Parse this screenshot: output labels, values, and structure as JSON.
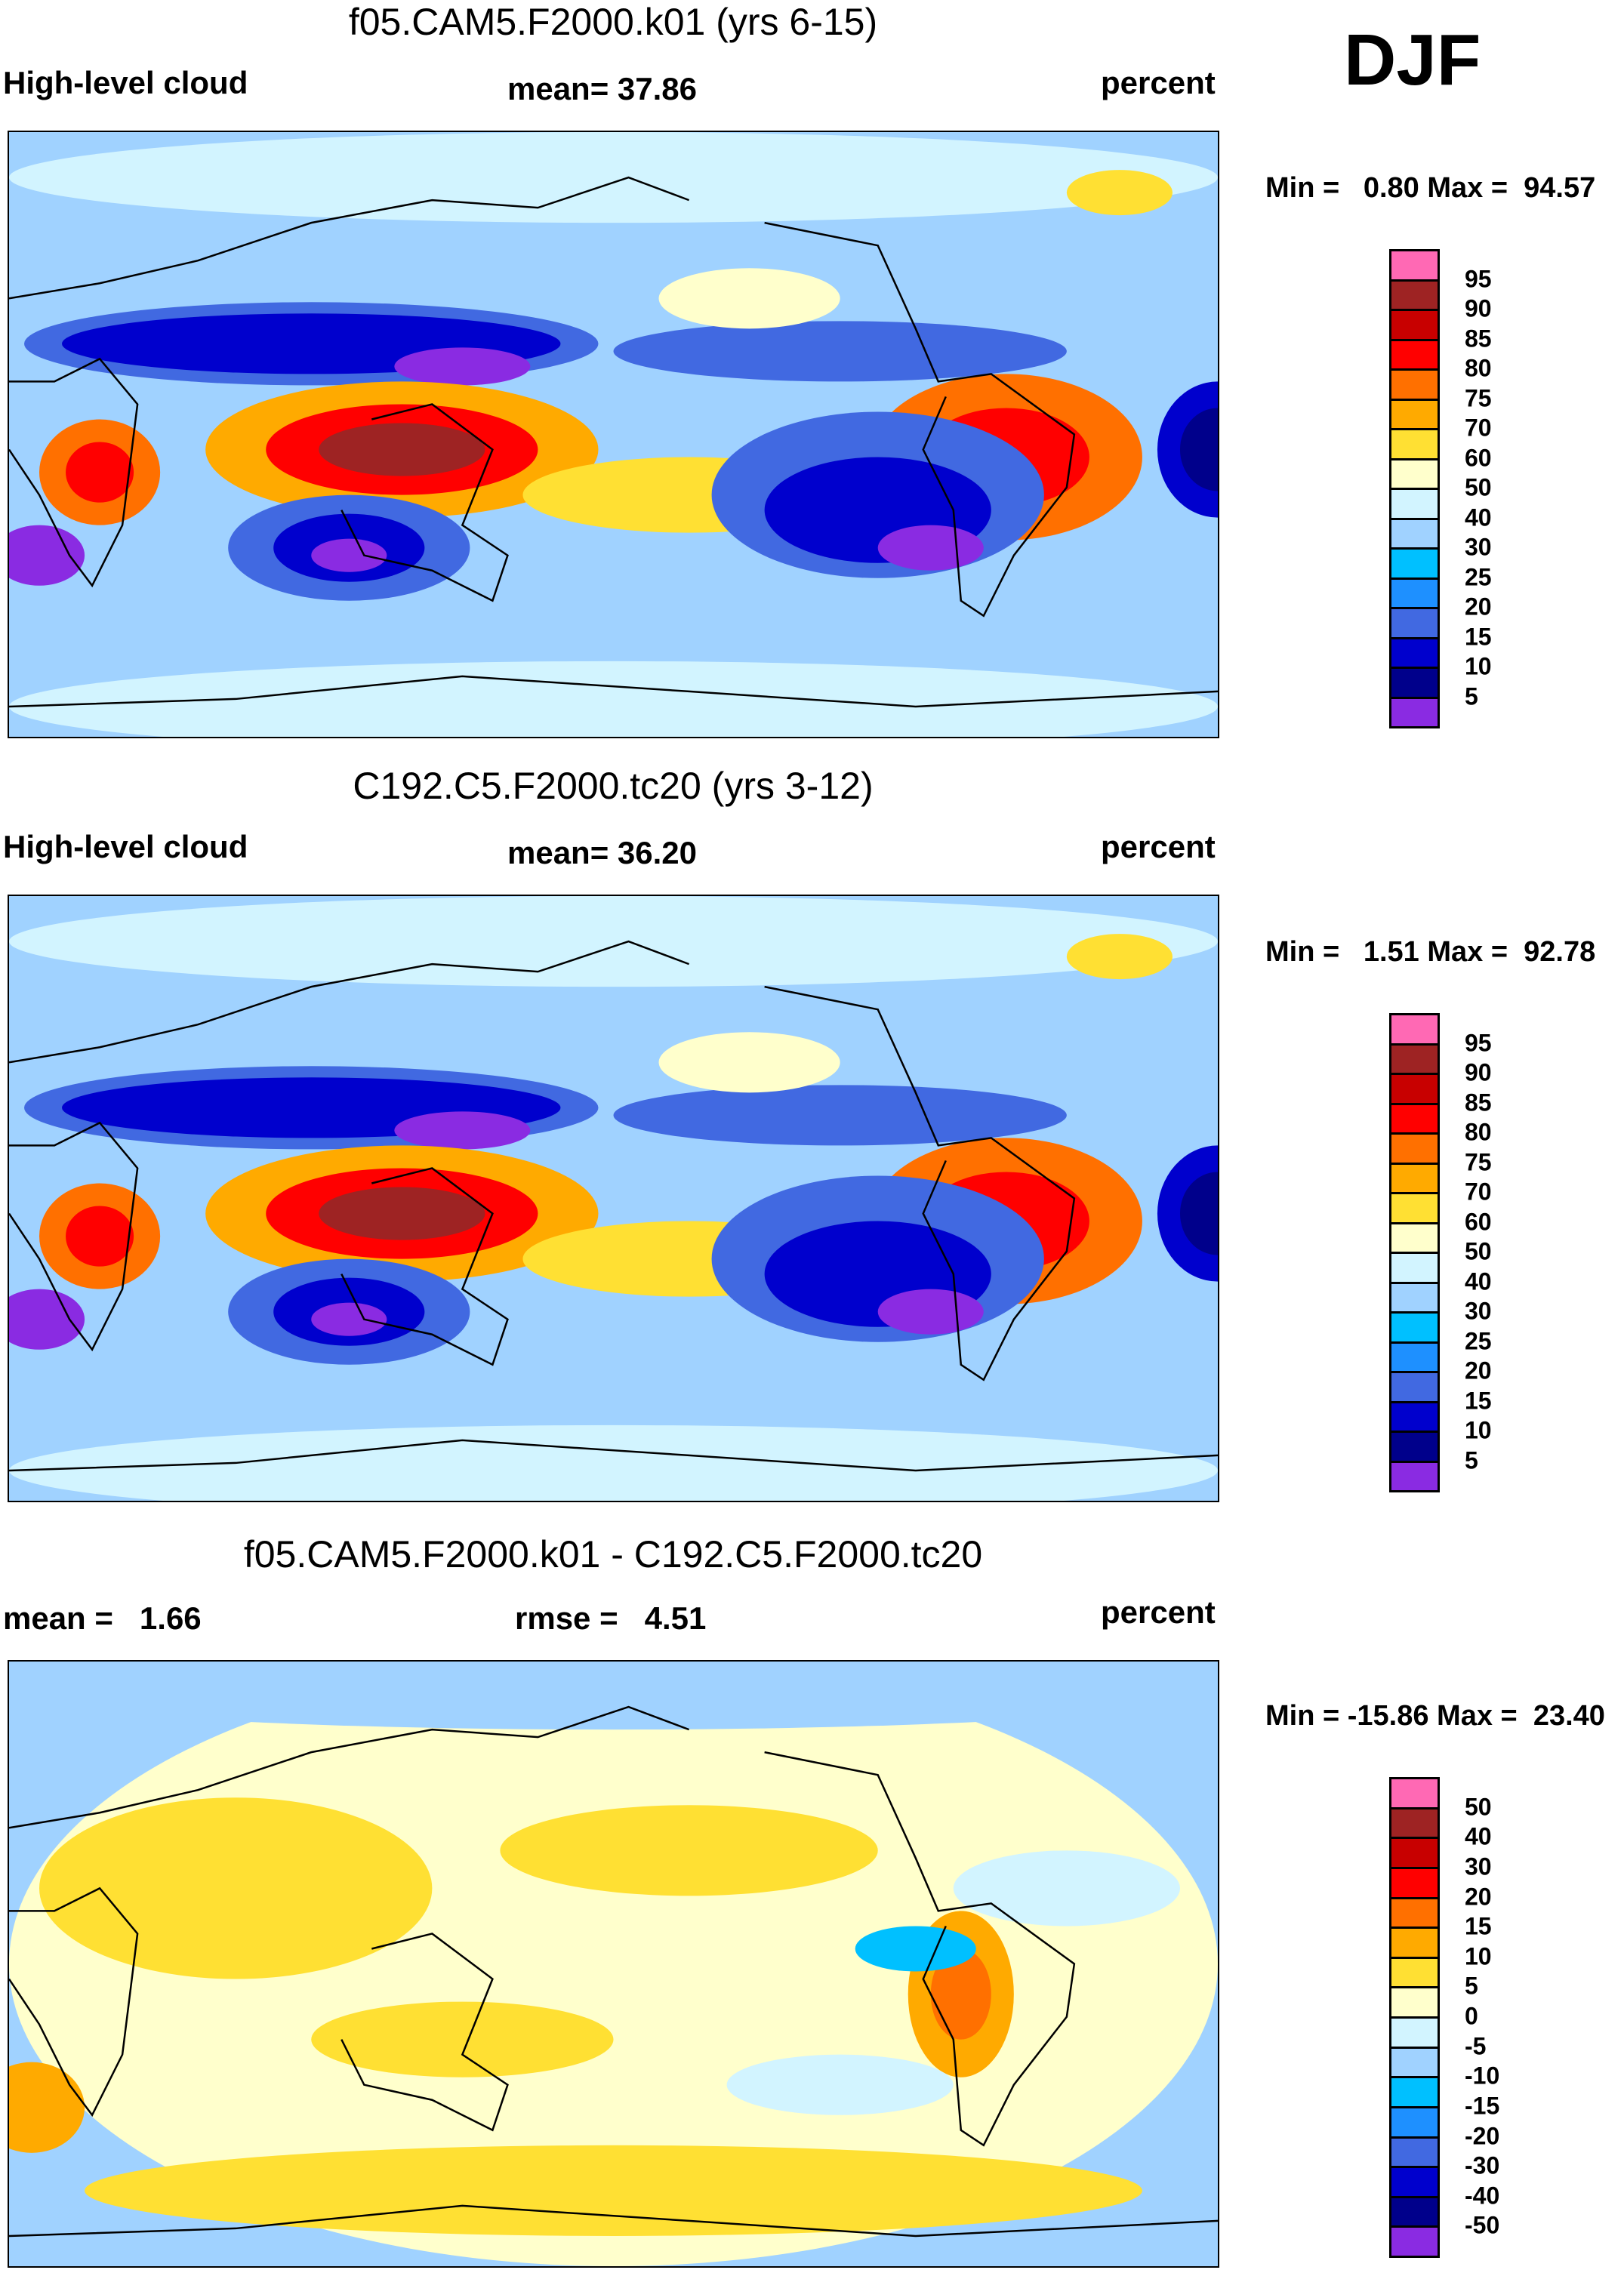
{
  "season": "DJF",
  "chart_data": [
    {
      "type": "heatmap",
      "title": "f05.CAM5.F2000.k01 (yrs 6-15)",
      "variable": "High-level cloud",
      "units": "percent",
      "stat_left": "mean=  37.86",
      "stat_mid": "",
      "minmax": "Min =   0.80 Max =  94.57",
      "min": 0.8,
      "max": 94.57,
      "mean": 37.86,
      "levels": [
        "95",
        "90",
        "85",
        "80",
        "75",
        "70",
        "60",
        "50",
        "40",
        "30",
        "25",
        "20",
        "15",
        "10",
        "5"
      ],
      "colors": [
        "#ff69b4",
        "#9e2323",
        "#c80000",
        "#ff0000",
        "#ff7000",
        "#ffaa00",
        "#ffe033",
        "#ffffcc",
        "#d2f4ff",
        "#a0d2ff",
        "#00c0ff",
        "#1e90ff",
        "#4169e1",
        "#0000cd",
        "#00008b",
        "#8a2be2"
      ]
    },
    {
      "type": "heatmap",
      "title": "C192.C5.F2000.tc20 (yrs 3-12)",
      "variable": "High-level cloud",
      "units": "percent",
      "stat_left": "mean=  36.20",
      "stat_mid": "",
      "minmax": "Min =   1.51 Max =  92.78",
      "min": 1.51,
      "max": 92.78,
      "mean": 36.2,
      "levels": [
        "95",
        "90",
        "85",
        "80",
        "75",
        "70",
        "60",
        "50",
        "40",
        "30",
        "25",
        "20",
        "15",
        "10",
        "5"
      ],
      "colors": [
        "#ff69b4",
        "#9e2323",
        "#c80000",
        "#ff0000",
        "#ff7000",
        "#ffaa00",
        "#ffe033",
        "#ffffcc",
        "#d2f4ff",
        "#a0d2ff",
        "#00c0ff",
        "#1e90ff",
        "#4169e1",
        "#0000cd",
        "#00008b",
        "#8a2be2"
      ]
    },
    {
      "type": "heatmap",
      "title": "f05.CAM5.F2000.k01 - C192.C5.F2000.tc20",
      "variable": "mean =   1.66",
      "units": "percent",
      "stat_left": "rmse =   4.51",
      "minmax": "Min = -15.86 Max =  23.40",
      "min": -15.86,
      "max": 23.4,
      "mean": 1.66,
      "rmse": 4.51,
      "levels": [
        "50",
        "40",
        "30",
        "20",
        "15",
        "10",
        "5",
        "0",
        "-5",
        "-10",
        "-15",
        "-20",
        "-30",
        "-40",
        "-50"
      ],
      "colors": [
        "#ff69b4",
        "#9e2323",
        "#c80000",
        "#ff0000",
        "#ff7000",
        "#ffaa00",
        "#ffe033",
        "#ffffcc",
        "#d2f4ff",
        "#a0d2ff",
        "#00c0ff",
        "#1e90ff",
        "#4169e1",
        "#0000cd",
        "#00008b",
        "#8a2be2"
      ]
    }
  ]
}
